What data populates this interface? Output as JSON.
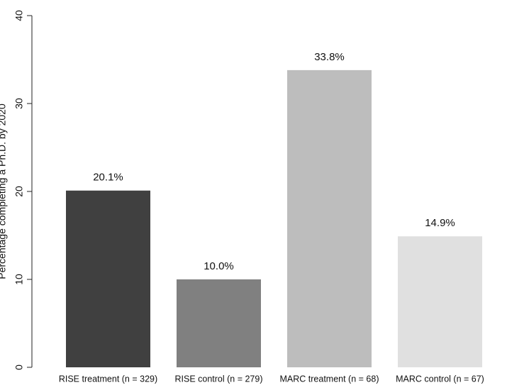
{
  "chart_data": {
    "type": "bar",
    "y_label": "Percentage completing a Ph.D. by 2020",
    "categories": [
      "RISE treatment (n = 329)",
      "RISE control (n = 279)",
      "MARC treatment (n = 68)",
      "MARC control (n = 67)"
    ],
    "values": [
      20.1,
      10.0,
      33.8,
      14.9
    ],
    "value_labels": [
      "20.1%",
      "10.0%",
      "33.8%",
      "14.9%"
    ],
    "colors": [
      "#404040",
      "#808080",
      "#bdbdbd",
      "#e0e0e0"
    ],
    "ylim": [
      0,
      40
    ],
    "yticks": [
      0,
      10,
      20,
      30,
      40
    ],
    "grid": false
  }
}
